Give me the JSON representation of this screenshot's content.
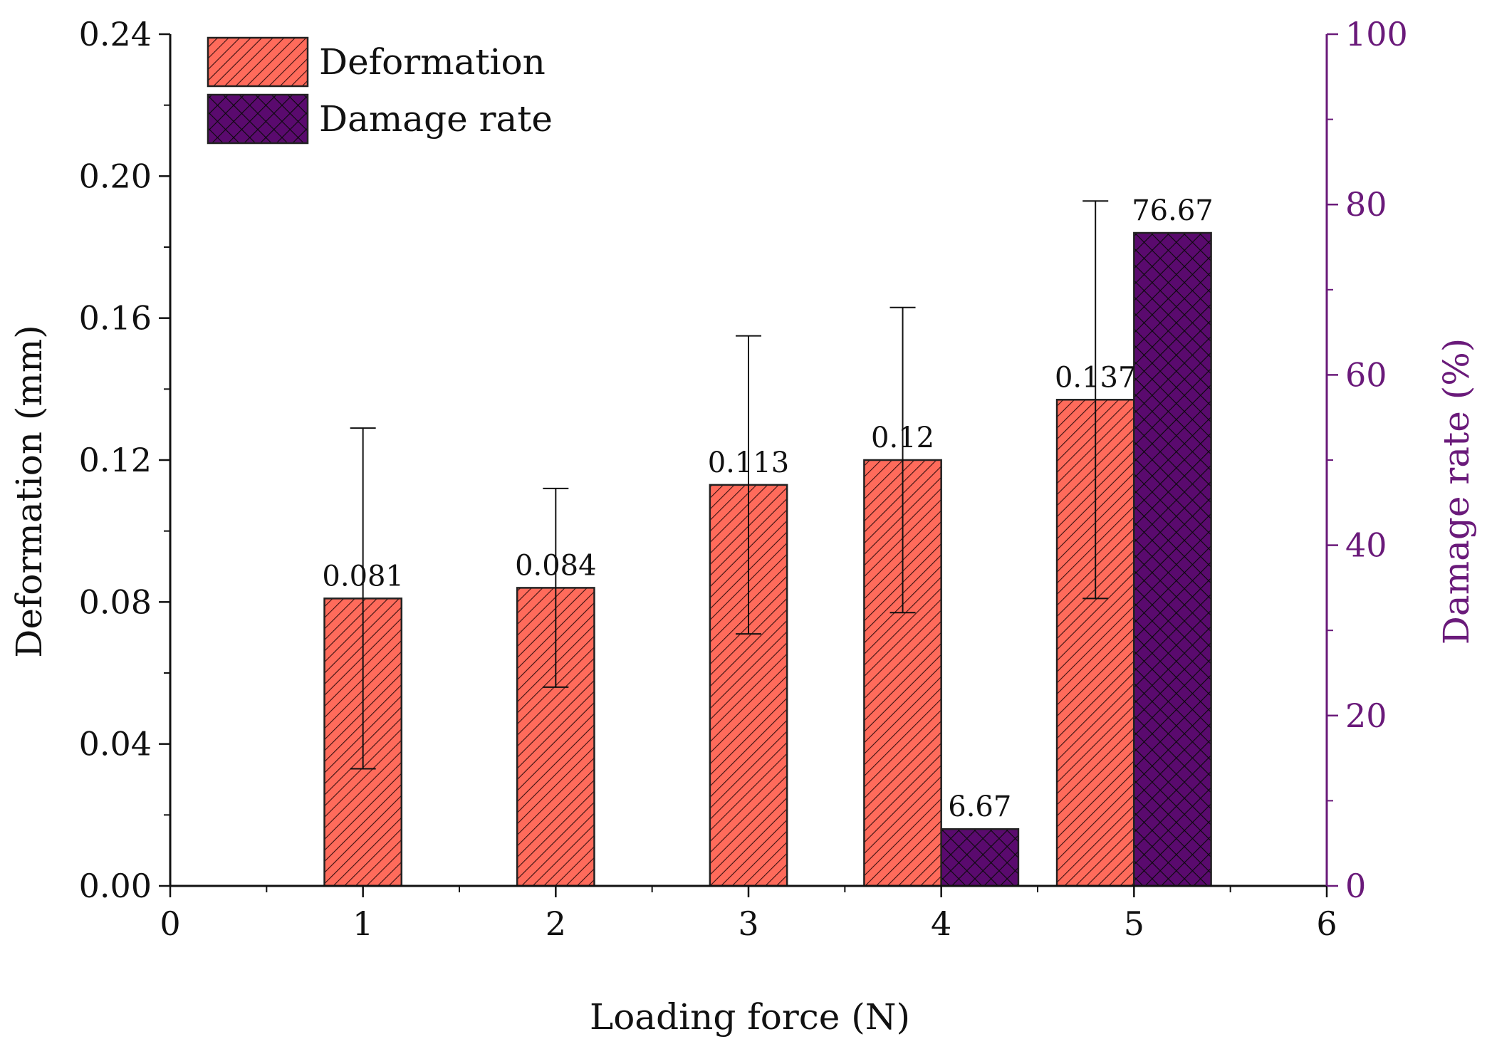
{
  "chart_data": {
    "type": "bar",
    "title": "",
    "xlabel": "Loading force (N)",
    "ylabel": "Deformation (mm)",
    "y2label": "Damage rate (%)",
    "xlim": [
      0,
      6
    ],
    "ylim": [
      0,
      0.24
    ],
    "y2lim": [
      0,
      100
    ],
    "x_ticks": [
      "0",
      "1",
      "2",
      "3",
      "4",
      "5",
      "6"
    ],
    "y_ticks": [
      "0.00",
      "0.04",
      "0.08",
      "0.12",
      "0.16",
      "0.20",
      "0.24"
    ],
    "y2_ticks": [
      "0",
      "20",
      "40",
      "60",
      "80",
      "100"
    ],
    "legend_position": "top-left",
    "colors": {
      "deformation_fill": "#ff6b5b",
      "damage_fill": "#5a0a6e",
      "right_axis": "#6a1a7a",
      "axis": "#111111"
    },
    "series": [
      {
        "name": "Deformation",
        "axis": "left",
        "x": [
          1,
          2,
          3,
          4,
          5
        ],
        "values": [
          0.081,
          0.084,
          0.113,
          0.12,
          0.137
        ],
        "labels": [
          "0.081",
          "0.084",
          "0.113",
          "0.12",
          "0.137"
        ],
        "error_low": [
          0.033,
          0.056,
          0.071,
          0.077,
          0.081
        ],
        "error_high": [
          0.129,
          0.112,
          0.155,
          0.163,
          0.193
        ]
      },
      {
        "name": "Damage rate",
        "axis": "right",
        "x": [
          4,
          5
        ],
        "values": [
          6.67,
          76.67
        ],
        "labels": [
          "6.67",
          "76.67"
        ]
      }
    ]
  }
}
